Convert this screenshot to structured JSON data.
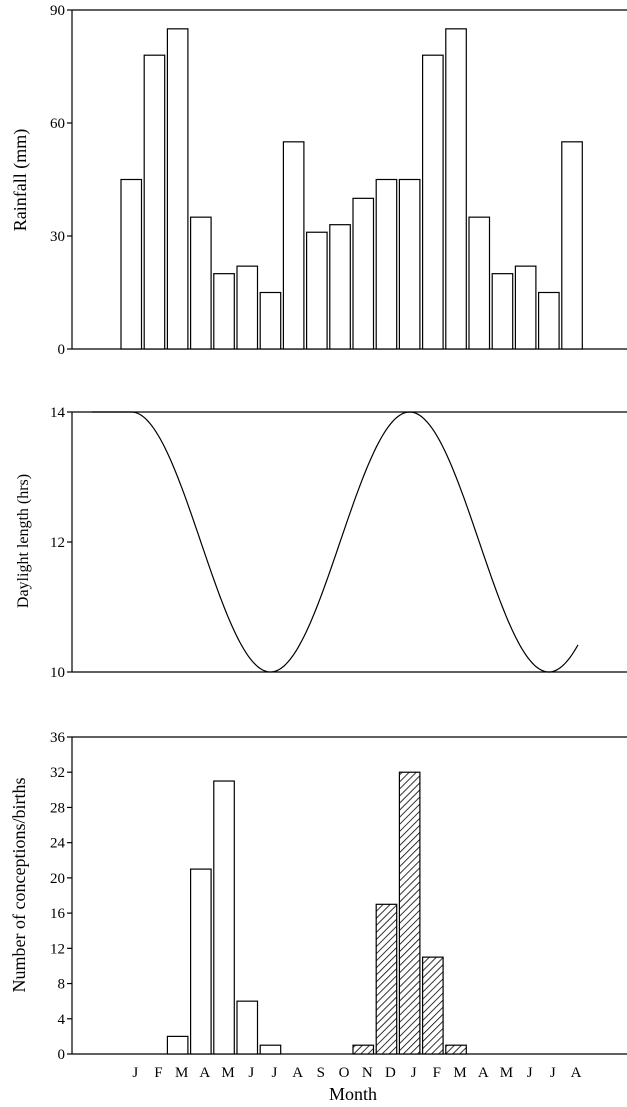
{
  "chart_data": [
    {
      "type": "bar",
      "ylabel": "Rainfall (mm)",
      "ylim": [
        0,
        90
      ],
      "yticks": [
        0,
        30,
        60,
        90
      ],
      "values": [
        45,
        78,
        85,
        35,
        20,
        22,
        15,
        55,
        31,
        33,
        40,
        45,
        45,
        78,
        85,
        35,
        20,
        22,
        15,
        55
      ],
      "grid": false
    },
    {
      "type": "line",
      "ylabel": "Daylight length (hrs)",
      "ylim": [
        10,
        14
      ],
      "yticks": [
        10,
        12,
        14
      ],
      "curve": "sinusoidal",
      "points": [
        {
          "x": "J",
          "y": 14
        },
        {
          "x": "J",
          "y": 10
        },
        {
          "x": "J",
          "y": 14
        },
        {
          "x": "J",
          "y": 10
        },
        {
          "x": "A",
          "y": 10.85
        }
      ],
      "grid": false
    },
    {
      "type": "bar",
      "ylabel": "Number of conceptions/births",
      "xlabel": "Month",
      "ylim": [
        0,
        36
      ],
      "yticks": [
        0,
        4,
        8,
        12,
        16,
        20,
        24,
        28,
        32,
        36
      ],
      "categories": [
        "J",
        "F",
        "M",
        "A",
        "M",
        "J",
        "J",
        "A",
        "S",
        "O",
        "N",
        "D",
        "J",
        "F",
        "M",
        "A",
        "M",
        "J",
        "J",
        "A"
      ],
      "series": [
        {
          "values": [
            0,
            0,
            2,
            21,
            31,
            6,
            1,
            0,
            0,
            0,
            0,
            0,
            0,
            0,
            0,
            0,
            0,
            0,
            0,
            0
          ],
          "fill": "open"
        },
        {
          "values": [
            0,
            0,
            0,
            0,
            0,
            0,
            0,
            0,
            0,
            0,
            1,
            17,
            32,
            11,
            1,
            0,
            0,
            0,
            0,
            0
          ],
          "fill": "hatched"
        }
      ],
      "grid": false
    }
  ]
}
